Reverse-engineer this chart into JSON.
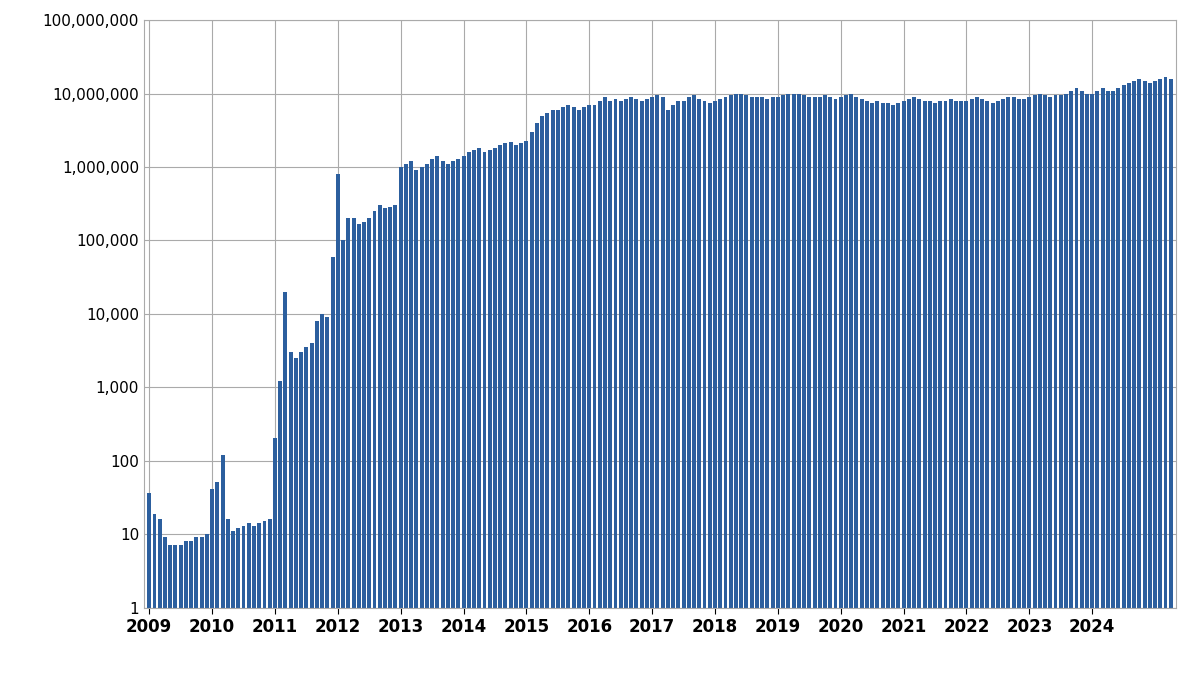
{
  "bar_color": "#2c5f9e",
  "background_color": "#ffffff",
  "grid_color": "#aaaaaa",
  "ylim_min": 1,
  "ylim_max": 100000000,
  "xlabel_years": [
    "2009",
    "2010",
    "2011",
    "2012",
    "2013",
    "2014",
    "2015",
    "2016",
    "2017",
    "2018",
    "2019",
    "2020",
    "2021",
    "2022",
    "2023",
    "2024"
  ],
  "values": [
    35,
    18,
    15,
    8,
    6,
    6,
    6,
    7,
    7,
    8,
    8,
    9,
    40,
    50,
    120,
    15,
    10,
    11,
    12,
    13,
    12,
    13,
    14,
    15,
    200,
    1200,
    20000,
    3000,
    2500,
    3000,
    3500,
    4000,
    8000,
    10000,
    9000,
    60000,
    800000,
    100000,
    200000,
    200000,
    170000,
    180000,
    200000,
    250000,
    300000,
    280000,
    290000,
    300000,
    1000000,
    1100000,
    1200000,
    900000,
    1000000,
    1100000,
    1300000,
    1400000,
    1200000,
    1100000,
    1200000,
    1300000,
    1400000,
    1600000,
    1700000,
    1800000,
    1600000,
    1700000,
    1800000,
    2000000,
    2100000,
    2200000,
    2000000,
    2100000,
    2300000,
    3000000,
    4000000,
    5000000,
    5500000,
    6000000,
    6000000,
    6500000,
    7000000,
    6500000,
    6000000,
    6500000,
    7000000,
    7000000,
    8000000,
    9000000,
    8000000,
    8500000,
    8000000,
    8500000,
    9000000,
    8500000,
    8000000,
    8500000,
    9000000,
    9500000,
    9000000,
    6000000,
    7000000,
    8000000,
    8000000,
    9000000,
    9500000,
    8500000,
    8000000,
    7500000,
    8000000,
    8500000,
    9000000,
    9500000,
    10000000,
    10000000,
    9500000,
    9000000,
    9000000,
    9000000,
    8500000,
    9000000,
    9000000,
    9500000,
    10000000,
    10000000,
    10000000,
    9500000,
    9000000,
    9000000,
    9000000,
    9500000,
    9000000,
    8500000,
    9000000,
    9500000,
    10000000,
    9000000,
    8500000,
    8000000,
    7500000,
    8000000,
    7500000,
    7500000,
    7000000,
    7500000,
    8000000,
    8500000,
    9000000,
    8500000,
    8000000,
    8000000,
    7500000,
    8000000,
    8000000,
    8500000,
    8000000,
    8000000,
    8000000,
    8500000,
    9000000,
    8500000,
    8000000,
    7500000,
    8000000,
    8500000,
    9000000,
    9000000,
    8500000,
    8500000,
    9000000,
    9500000,
    10000000,
    9500000,
    9000000,
    9500000,
    9500000,
    10000000,
    11000000,
    12000000,
    11000000,
    10000000,
    10000000,
    11000000,
    12000000,
    11000000,
    11000000,
    12000000,
    13000000,
    14000000,
    15000000,
    16000000,
    15000000,
    14000000,
    15000000,
    16000000,
    17000000,
    16000000
  ]
}
